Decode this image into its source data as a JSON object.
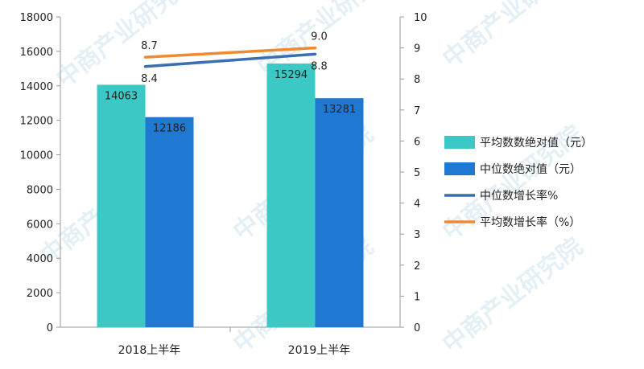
{
  "watermark": "中商产业研究院",
  "chart_data": {
    "type": "bar",
    "categories": [
      "2018上半年",
      "2019上半年"
    ],
    "y_left": {
      "min": 0,
      "max": 18000,
      "step": 2000,
      "ticks": [
        "0",
        "2000",
        "4000",
        "6000",
        "8000",
        "10000",
        "12000",
        "14000",
        "16000",
        "18000"
      ]
    },
    "y_right": {
      "min": 0,
      "max": 10,
      "step": 1,
      "ticks": [
        "0",
        "1",
        "2",
        "3",
        "4",
        "5",
        "6",
        "7",
        "8",
        "9",
        "10"
      ]
    },
    "series": [
      {
        "name": "平均数数绝对值（元）",
        "kind": "bar",
        "axis": "left",
        "color": "#3cc8c4",
        "values": [
          14063,
          15294
        ],
        "labels": [
          "14063",
          "15294"
        ]
      },
      {
        "name": "中位数绝对值（元）",
        "kind": "bar",
        "axis": "left",
        "color": "#1f78d1",
        "values": [
          12186,
          13281
        ],
        "labels": [
          "12186",
          "13281"
        ]
      },
      {
        "name": "中位数增长率%",
        "kind": "line",
        "axis": "right",
        "color": "#3a6fb0",
        "values": [
          8.4,
          8.8
        ],
        "labels": [
          "8.4",
          "8.8"
        ]
      },
      {
        "name": "平均数增长率（%）",
        "kind": "line",
        "axis": "right",
        "color": "#f08a32",
        "values": [
          8.7,
          9.0
        ],
        "labels": [
          "8.7",
          "9.0"
        ]
      }
    ],
    "legend_position": "right",
    "grid": false
  }
}
